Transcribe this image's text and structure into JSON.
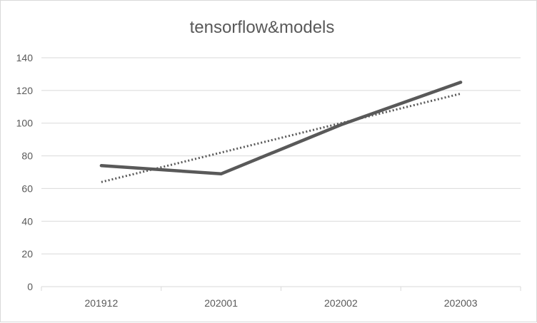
{
  "chart_data": {
    "type": "line",
    "title": "tensorflow&models",
    "categories": [
      "201912",
      "202001",
      "202002",
      "202003"
    ],
    "series": [
      {
        "values": [
          74,
          69,
          99,
          125
        ],
        "color": "#595959",
        "style": "solid"
      },
      {
        "values": [
          64,
          82,
          100,
          118
        ],
        "color": "#595959",
        "style": "dotted",
        "role": "trendline"
      }
    ],
    "ylim": [
      0,
      140
    ],
    "yticks": [
      0,
      20,
      40,
      60,
      80,
      100,
      120,
      140
    ],
    "grid": true,
    "legend": "none"
  }
}
